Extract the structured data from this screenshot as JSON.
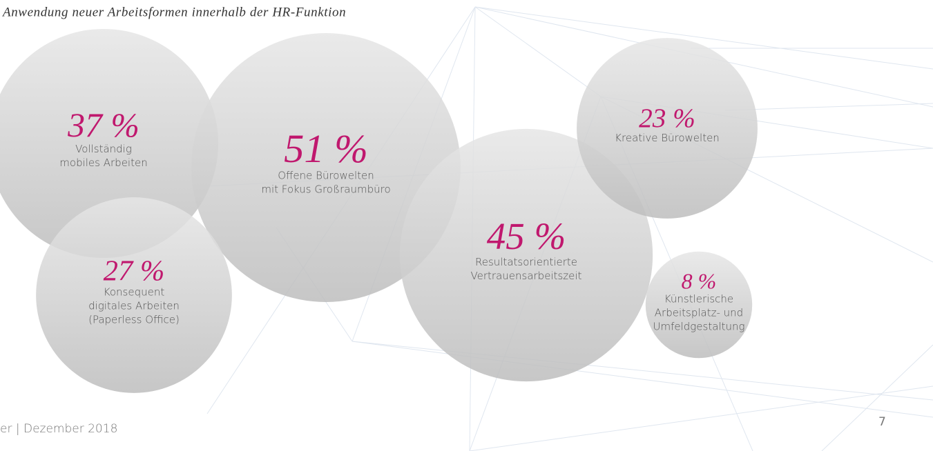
{
  "chart_data": {
    "type": "bubble",
    "title": "Anwendung neuer Arbeitsformen innerhalb der HR-Funktion",
    "categories": [
      [
        "Vollständig",
        "mobiles Arbeiten"
      ],
      [
        "Offene Bürowelten",
        "mit Fokus Großraumbüro"
      ],
      [
        "Konsequent",
        "digitales Arbeiten",
        "(Paperless Office)"
      ],
      [
        "Resultatsorientierte",
        "Vertrauensarbeitszeit"
      ],
      [
        "Kreative Bürowelten"
      ],
      [
        "Künstlerische",
        "Arbeitsplatz- und",
        "Umfeldgestaltung"
      ]
    ],
    "values": [
      37,
      51,
      27,
      45,
      23,
      8
    ],
    "value_labels": [
      "37 %",
      "51 %",
      "27 %",
      "45 %",
      "23 %",
      "8 %"
    ],
    "color": "#c4c4c4",
    "label_color": "#c0186e"
  },
  "footer": {
    "text": "er | Dezember 2018",
    "page": 7
  }
}
